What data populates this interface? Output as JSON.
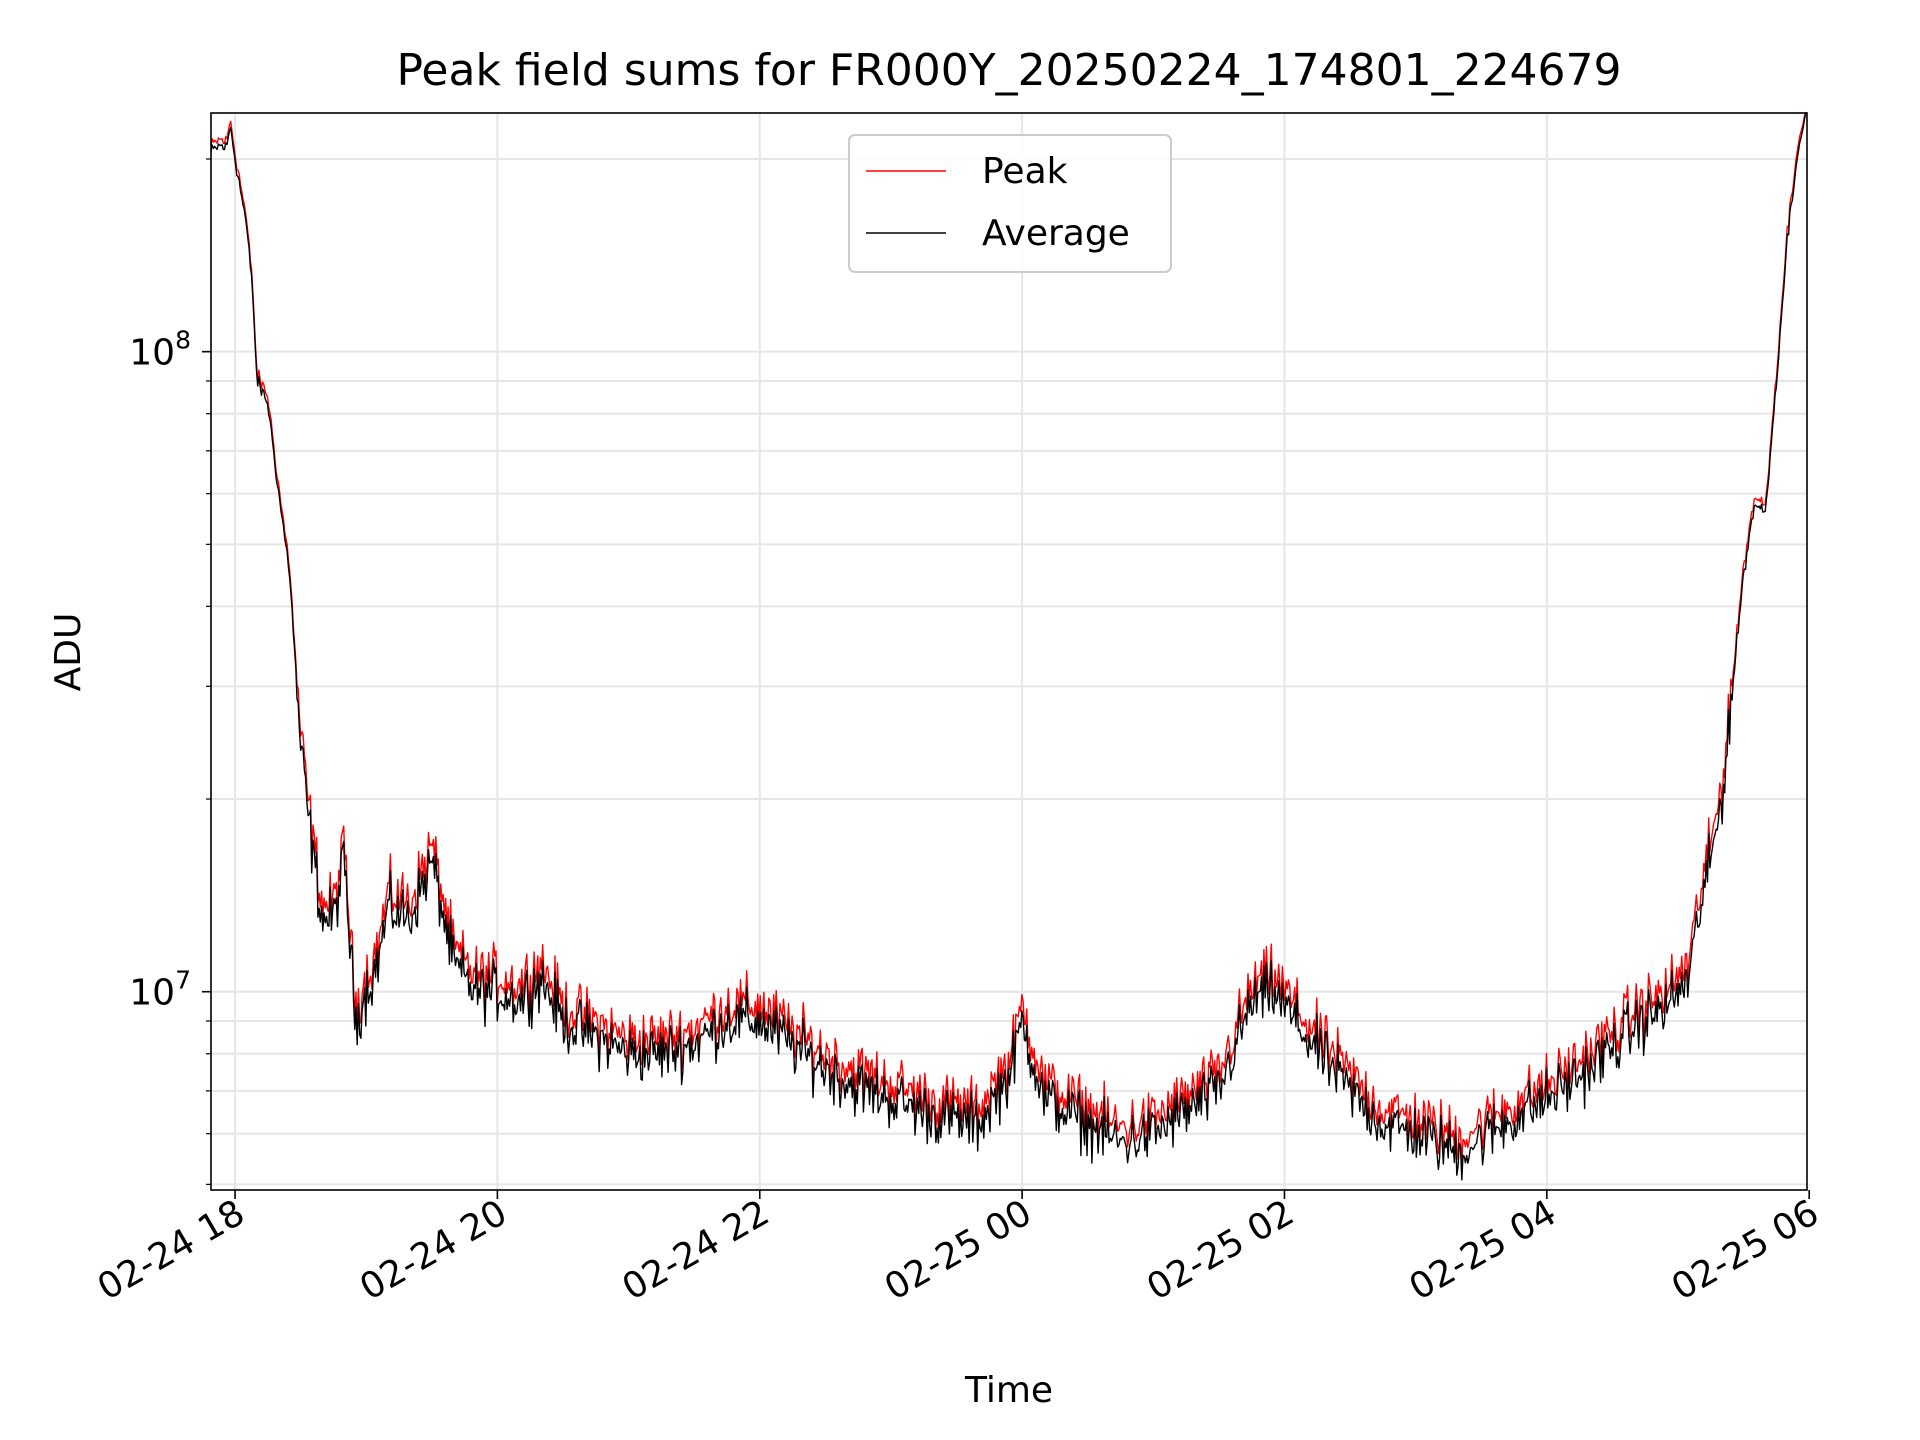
{
  "chart_data": {
    "type": "line",
    "title": "Peak field sums for FR000Y_20250224_174801_224679",
    "xlabel": "Time",
    "ylabel": "ADU",
    "yscale": "log",
    "xlim": [
      "2025-02-24 17:49",
      "2025-02-25 05:59"
    ],
    "ylim": [
      4900000,
      236000000
    ],
    "grid": true,
    "legend_position": "top-center",
    "x_ticks": [
      {
        "t": "2025-02-24 18:00",
        "label": "02-24 18"
      },
      {
        "t": "2025-02-24 20:00",
        "label": "02-24 20"
      },
      {
        "t": "2025-02-24 22:00",
        "label": "02-24 22"
      },
      {
        "t": "2025-02-25 00:00",
        "label": "02-25 00"
      },
      {
        "t": "2025-02-25 02:00",
        "label": "02-25 02"
      },
      {
        "t": "2025-02-25 04:00",
        "label": "02-25 04"
      },
      {
        "t": "2025-02-25 06:00",
        "label": "02-25 06"
      }
    ],
    "y_major_ticks": [
      {
        "value": 10000000,
        "base": "10",
        "exp": "7"
      },
      {
        "value": 100000000,
        "base": "10",
        "exp": "8"
      }
    ],
    "y_minor_ticks": [
      5000000,
      6000000,
      7000000,
      8000000,
      9000000,
      20000000,
      30000000,
      40000000,
      50000000,
      60000000,
      70000000,
      80000000,
      90000000,
      200000000
    ],
    "series": [
      {
        "name": "Peak",
        "color": "#ff0000"
      },
      {
        "name": "Average",
        "color": "#000000"
      }
    ],
    "x": [
      "2025-02-24 17:49",
      "2025-02-24 17:53",
      "2025-02-24 17:56",
      "2025-02-24 17:58",
      "2025-02-24 18:00",
      "2025-02-24 18:05",
      "2025-02-24 18:08",
      "2025-02-24 18:10",
      "2025-02-24 18:15",
      "2025-02-24 18:20",
      "2025-02-24 18:25",
      "2025-02-24 18:30",
      "2025-02-24 18:35",
      "2025-02-24 18:40",
      "2025-02-24 18:45",
      "2025-02-24 18:50",
      "2025-02-24 18:55",
      "2025-02-24 19:00",
      "2025-02-24 19:05",
      "2025-02-24 19:10",
      "2025-02-24 19:20",
      "2025-02-24 19:30",
      "2025-02-24 19:40",
      "2025-02-24 19:50",
      "2025-02-24 20:00",
      "2025-02-24 20:10",
      "2025-02-24 20:20",
      "2025-02-24 20:30",
      "2025-02-24 20:45",
      "2025-02-24 21:00",
      "2025-02-24 21:15",
      "2025-02-24 21:30",
      "2025-02-24 21:45",
      "2025-02-24 22:00",
      "2025-02-24 22:20",
      "2025-02-24 22:40",
      "2025-02-24 23:00",
      "2025-02-24 23:20",
      "2025-02-24 23:40",
      "2025-02-24 23:55",
      "2025-02-25 00:00",
      "2025-02-25 00:10",
      "2025-02-25 00:30",
      "2025-02-25 00:45",
      "2025-02-25 01:00",
      "2025-02-25 01:15",
      "2025-02-25 01:30",
      "2025-02-25 01:45",
      "2025-02-25 01:55",
      "2025-02-25 02:10",
      "2025-02-25 02:30",
      "2025-02-25 02:45",
      "2025-02-25 03:00",
      "2025-02-25 03:20",
      "2025-02-25 03:40",
      "2025-02-25 04:00",
      "2025-02-25 04:20",
      "2025-02-25 04:40",
      "2025-02-25 04:55",
      "2025-02-25 05:05",
      "2025-02-25 05:10",
      "2025-02-25 05:15",
      "2025-02-25 05:20",
      "2025-02-25 05:25",
      "2025-02-25 05:30",
      "2025-02-25 05:35",
      "2025-02-25 05:40",
      "2025-02-25 05:45",
      "2025-02-25 05:50",
      "2025-02-25 05:55",
      "2025-02-25 05:59"
    ],
    "average_values": [
      205000000,
      210000000,
      208000000,
      225000000,
      200000000,
      160000000,
      125000000,
      90000000,
      83000000,
      60000000,
      45000000,
      24000000,
      17000000,
      13000000,
      13000000,
      16000000,
      9000000,
      10000000,
      11000000,
      13500000,
      13000000,
      16000000,
      11000000,
      10000000,
      10000000,
      9700000,
      10500000,
      9000000,
      8500000,
      8000000,
      8000000,
      8300000,
      9000000,
      9000000,
      8000000,
      7200000,
      6800000,
      6400000,
      6200000,
      7500000,
      9000000,
      6800000,
      6200000,
      5800000,
      6000000,
      6500000,
      7000000,
      9600000,
      10000000,
      8500000,
      7000000,
      6200000,
      6000000,
      5600000,
      6200000,
      6800000,
      7600000,
      8800000,
      9500000,
      10500000,
      13500000,
      16000000,
      20000000,
      30000000,
      45000000,
      58000000,
      56000000,
      90000000,
      150000000,
      210000000,
      236000000
    ],
    "peak_values": [
      208000000,
      213000000,
      211000000,
      228000000,
      203000000,
      162000000,
      127000000,
      91500000,
      84500000,
      61000000,
      45800000,
      24500000,
      17400000,
      13300000,
      13300000,
      16400000,
      9200000,
      10250000,
      11300000,
      13900000,
      13400000,
      16500000,
      11300000,
      10300000,
      10300000,
      9950000,
      10800000,
      9250000,
      8700000,
      8200000,
      8200000,
      8500000,
      9250000,
      9250000,
      8200000,
      7400000,
      7000000,
      6550000,
      6350000,
      7700000,
      9250000,
      7000000,
      6350000,
      5950000,
      6150000,
      6650000,
      7200000,
      9850000,
      10300000,
      8700000,
      7200000,
      6350000,
      6150000,
      5750000,
      6350000,
      6950000,
      7800000,
      9050000,
      9750000,
      10800000,
      13900000,
      16400000,
      20500000,
      30700000,
      46000000,
      59000000,
      57000000,
      92000000,
      153000000,
      214000000,
      236000000
    ],
    "noise_amplitude": 0.045
  }
}
